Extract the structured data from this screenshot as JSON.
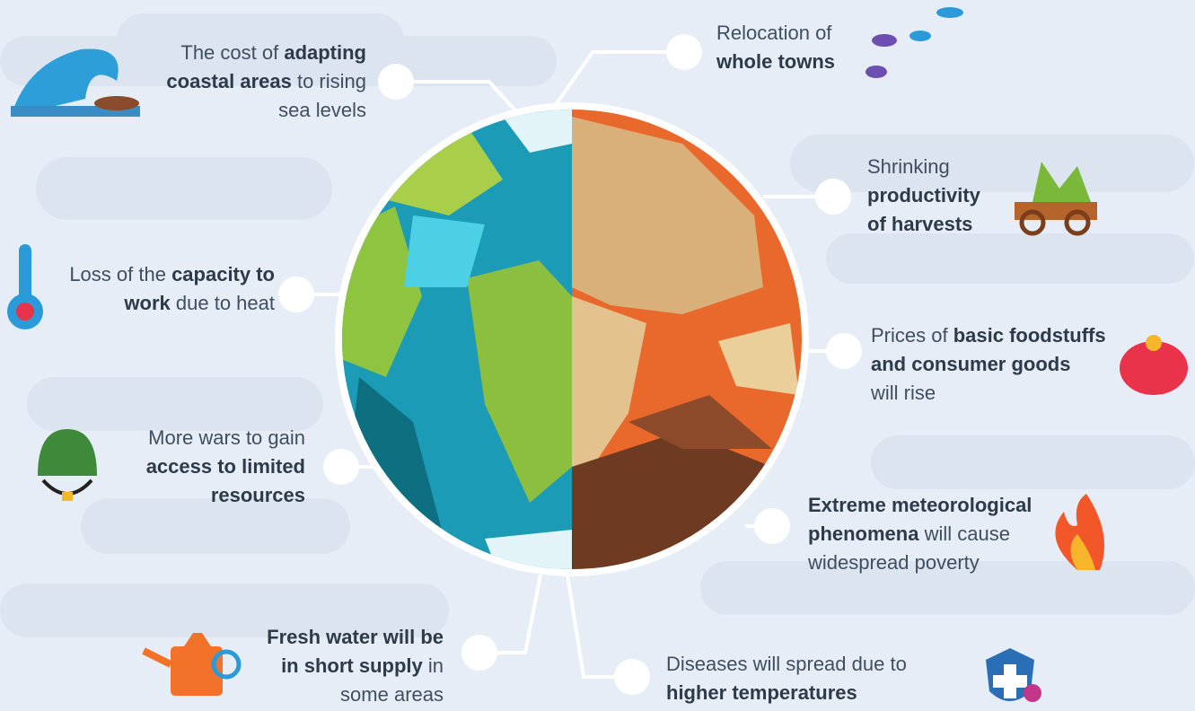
{
  "items": [
    {
      "lines": [
        [
          {
            "text": "The cost of ",
            "bold": false
          },
          {
            "text": "adapting",
            "bold": true
          }
        ],
        [
          {
            "text": "coastal areas",
            "bold": true
          },
          {
            "text": " to rising",
            "bold": false
          }
        ],
        [
          {
            "text": "sea levels",
            "bold": false
          }
        ]
      ]
    },
    {
      "lines": [
        [
          {
            "text": "Relocation of",
            "bold": false
          }
        ],
        [
          {
            "text": "whole towns",
            "bold": true
          }
        ]
      ]
    },
    {
      "lines": [
        [
          {
            "text": "Shrinking",
            "bold": false
          }
        ],
        [
          {
            "text": "productivity",
            "bold": true
          }
        ],
        [
          {
            "text": "of harvests",
            "bold": true
          }
        ]
      ]
    },
    {
      "lines": [
        [
          {
            "text": "Prices of ",
            "bold": false
          },
          {
            "text": "basic foodstuffs",
            "bold": true
          }
        ],
        [
          {
            "text": "and consumer goods",
            "bold": true
          }
        ],
        [
          {
            "text": "will rise",
            "bold": false
          }
        ]
      ]
    },
    {
      "lines": [
        [
          {
            "text": "Extreme meteorological",
            "bold": true
          }
        ],
        [
          {
            "text": "phenomena",
            "bold": true
          },
          {
            "text": " will cause",
            "bold": false
          }
        ],
        [
          {
            "text": "widespread poverty",
            "bold": false
          }
        ]
      ]
    },
    {
      "lines": [
        [
          {
            "text": "Diseases will spread due to",
            "bold": false
          }
        ],
        [
          {
            "text": "higher temperatures",
            "bold": true
          }
        ]
      ]
    },
    {
      "lines": [
        [
          {
            "text": "Fresh water will be",
            "bold": true
          }
        ],
        [
          {
            "text": "in short supply",
            "bold": true
          },
          {
            "text": " in",
            "bold": false
          }
        ],
        [
          {
            "text": "some areas",
            "bold": false
          }
        ]
      ]
    },
    {
      "lines": [
        [
          {
            "text": "More wars to gain",
            "bold": false
          }
        ],
        [
          {
            "text": "access to limited",
            "bold": true
          }
        ],
        [
          {
            "text": "resources",
            "bold": true
          }
        ]
      ]
    },
    {
      "lines": [
        [
          {
            "text": "Loss of the ",
            "bold": false
          },
          {
            "text": "capacity to",
            "bold": true
          }
        ],
        [
          {
            "text": "work",
            "bold": true
          },
          {
            "text": " due to heat",
            "bold": false
          }
        ]
      ]
    }
  ]
}
